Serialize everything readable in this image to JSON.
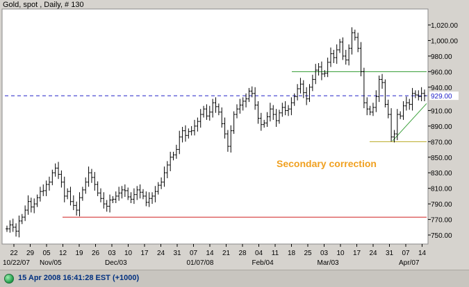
{
  "window": {
    "title": "Gold, spot , Daily, # 130"
  },
  "status_bar": {
    "timestamp": "15 Apr 2008 16:41:28 EST (+1000)",
    "indicator_color": "#2faa57"
  },
  "chart_data": {
    "type": "ohlc-bar",
    "title": "Gold, spot , Daily, # 130",
    "ylim": [
      740,
      1040
    ],
    "y_ticks": [
      750,
      770,
      790,
      810,
      830,
      850,
      870,
      890,
      910,
      940,
      960,
      980,
      1000,
      1020
    ],
    "y_tick_labels": [
      "750.00",
      "770.00",
      "790.00",
      "810.00",
      "830.00",
      "850.00",
      "870.00",
      "890.00",
      "910.00",
      "940.00",
      "960.00",
      "980.00",
      "1,000.00",
      "1,020.00"
    ],
    "x_tick_labels": [
      "22",
      "29",
      "05",
      "12",
      "19",
      "26",
      "03",
      "10",
      "17",
      "24",
      "31",
      "07",
      "14",
      "21",
      "28",
      "04",
      "11",
      "18",
      "25",
      "03",
      "10",
      "17",
      "24",
      "31",
      "07",
      "14"
    ],
    "x_major_labels": [
      "10/22/07",
      "Nov/05",
      "Dec/03",
      "01/07/08",
      "Feb/04",
      "Mar/03",
      "Apr/07"
    ],
    "current_price": {
      "label": "929.00",
      "value": 929,
      "color": "#2020c8"
    },
    "reference_lines": [
      {
        "name": "resistance",
        "value": 960,
        "color": "#2e9a2e"
      },
      {
        "name": "support-high",
        "value": 870,
        "color": "#b8a820"
      },
      {
        "name": "support-low",
        "value": 773,
        "color": "#d02020"
      }
    ],
    "trendline": {
      "from": [
        "Mar/31",
        871
      ],
      "to": [
        "Apr/15",
        919
      ],
      "color": "#3aa03a"
    },
    "annotation": {
      "text": "Secondary correction",
      "color": "#f0a020"
    },
    "closes": [
      758,
      763,
      760,
      755,
      768,
      773,
      782,
      793,
      786,
      790,
      798,
      806,
      807,
      815,
      818,
      830,
      836,
      828,
      818,
      800,
      806,
      793,
      788,
      782,
      798,
      808,
      818,
      830,
      824,
      815,
      804,
      797,
      790,
      787,
      795,
      796,
      800,
      804,
      808,
      807,
      799,
      796,
      802,
      808,
      805,
      800,
      792,
      797,
      800,
      806,
      814,
      818,
      830,
      840,
      850,
      853,
      860,
      876,
      884,
      878,
      883,
      884,
      890,
      896,
      905,
      912,
      903,
      908,
      920,
      915,
      908,
      893,
      880,
      864,
      884,
      905,
      912,
      917,
      922,
      925,
      935,
      932,
      917,
      900,
      892,
      894,
      902,
      912,
      905,
      897,
      907,
      914,
      910,
      912,
      920,
      928,
      938,
      944,
      933,
      925,
      940,
      950,
      962,
      966,
      957,
      958,
      972,
      983,
      978,
      988,
      998,
      980,
      975,
      990,
      1010,
      1004,
      990,
      960,
      920,
      912,
      908,
      914,
      928,
      950,
      946,
      918,
      905,
      876,
      880,
      905,
      903,
      916,
      920,
      918,
      932,
      930,
      928,
      932,
      929
    ]
  }
}
